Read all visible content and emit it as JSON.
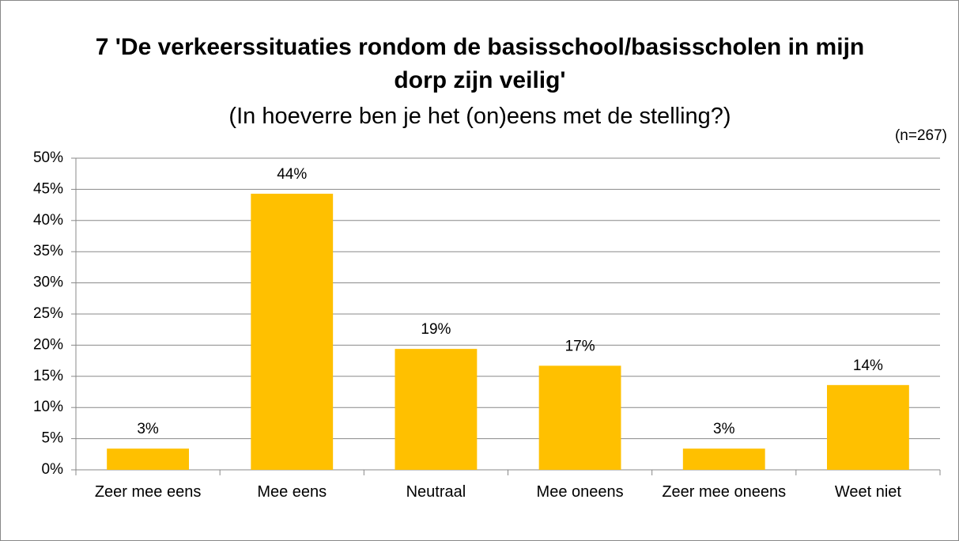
{
  "chart_data": {
    "type": "bar",
    "title": "7 'De verkeerssituaties rondom de basisschool/basisscholen in mijn dorp zijn veilig'",
    "subtitle": "(In hoeverre ben je het (on)eens met de stelling?)",
    "annotation": "(n=267)",
    "categories": [
      "Zeer mee eens",
      "Mee eens",
      "Neutraal",
      "Mee oneens",
      "Zeer mee oneens",
      "Weet niet"
    ],
    "values": [
      3.4,
      44.3,
      19.4,
      16.7,
      3.4,
      13.6
    ],
    "value_labels": [
      "3%",
      "44%",
      "19%",
      "17%",
      "3%",
      "14%"
    ],
    "color": "#ffc000",
    "ylim": [
      0,
      50
    ],
    "yticks": [
      {
        "value": 0,
        "label": "0%"
      },
      {
        "value": 5,
        "label": "5%"
      },
      {
        "value": 10,
        "label": "10%"
      },
      {
        "value": 15,
        "label": "15%"
      },
      {
        "value": 20,
        "label": "20%"
      },
      {
        "value": 25,
        "label": "25%"
      },
      {
        "value": 30,
        "label": "30%"
      },
      {
        "value": 35,
        "label": "35%"
      },
      {
        "value": 40,
        "label": "40%"
      },
      {
        "value": 45,
        "label": "45%"
      },
      {
        "value": 50,
        "label": "50%"
      }
    ],
    "grid": true
  }
}
